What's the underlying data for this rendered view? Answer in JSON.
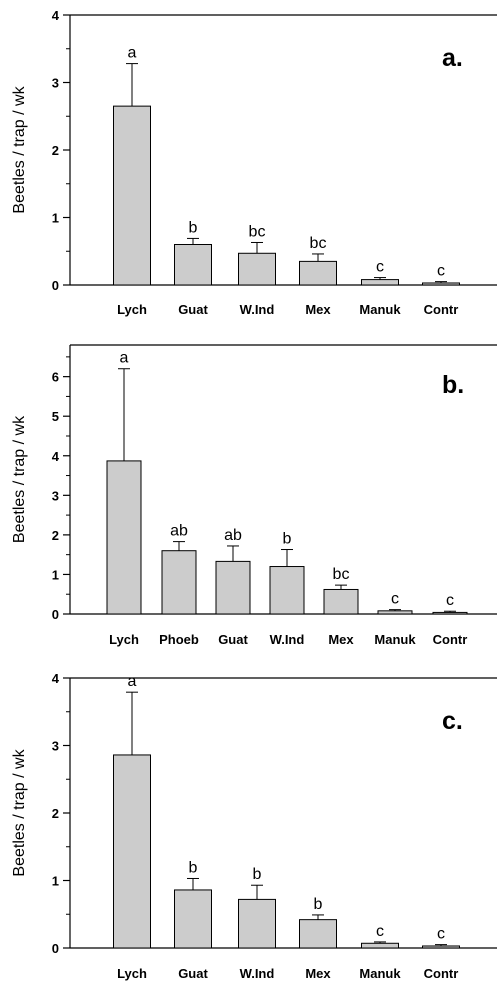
{
  "chart_data": [
    {
      "type": "bar",
      "panel_label": "a.",
      "ylabel": "Beetles / trap / wk",
      "xlabel": "",
      "ylim": [
        0,
        4
      ],
      "yticks": [
        0,
        1,
        2,
        3,
        4
      ],
      "error_bars": "upper",
      "categories": [
        "Lych",
        "Guat",
        "W.Ind",
        "Mex",
        "Manuk",
        "Contr"
      ],
      "values": [
        2.65,
        0.6,
        0.47,
        0.35,
        0.08,
        0.03
      ],
      "errors": [
        0.63,
        0.09,
        0.16,
        0.11,
        0.03,
        0.02
      ],
      "letters": [
        "a",
        "b",
        "bc",
        "bc",
        "c",
        "c"
      ]
    },
    {
      "type": "bar",
      "panel_label": "b.",
      "ylabel": "Beetles / trap / wk",
      "xlabel": "",
      "ylim": [
        0,
        6.8
      ],
      "yticks": [
        0,
        1,
        2,
        3,
        4,
        5,
        6
      ],
      "error_bars": "upper",
      "categories": [
        "Lych",
        "Phoeb",
        "Guat",
        "W.Ind",
        "Mex",
        "Manuk",
        "Contr"
      ],
      "values": [
        3.87,
        1.6,
        1.33,
        1.2,
        0.62,
        0.08,
        0.04
      ],
      "errors": [
        2.33,
        0.23,
        0.39,
        0.43,
        0.11,
        0.03,
        0.03
      ],
      "letters": [
        "a",
        "ab",
        "ab",
        "b",
        "bc",
        "c",
        "c"
      ]
    },
    {
      "type": "bar",
      "panel_label": "c.",
      "ylabel": "Beetles / trap / wk",
      "xlabel": "",
      "ylim": [
        0,
        4
      ],
      "yticks": [
        0,
        1,
        2,
        3,
        4
      ],
      "error_bars": "upper",
      "categories": [
        "Lych",
        "Guat",
        "W.Ind",
        "Mex",
        "Manuk",
        "Contr"
      ],
      "values": [
        2.86,
        0.86,
        0.72,
        0.42,
        0.07,
        0.03
      ],
      "errors": [
        0.93,
        0.17,
        0.21,
        0.07,
        0.02,
        0.02
      ],
      "letters": [
        "a",
        "b",
        "b",
        "b",
        "c",
        "c"
      ]
    }
  ],
  "colors": {
    "bar_fill": "#cccccc",
    "bar_stroke": "#000000",
    "axis": "#000000"
  }
}
